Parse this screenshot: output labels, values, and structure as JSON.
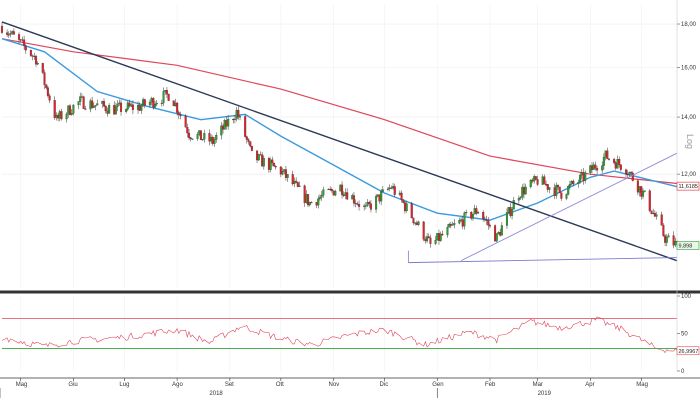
{
  "chart_data": [
    {
      "type": "candlestick",
      "scale": "log",
      "scale_label": "Log",
      "ylim": [
        8.8,
        19.0
      ],
      "y_ticks": [
        "18,00",
        "16,00",
        "14,00",
        "12,00"
      ],
      "last_value": "9,898",
      "ma_short_value": "11,6185",
      "x_months": [
        "Mag",
        "Giu",
        "Lug",
        "Ago",
        "Set",
        "Ott",
        "Nov",
        "Dic",
        "Gen",
        "Feb",
        "Mar",
        "Apr",
        "Mag"
      ],
      "x_years": [
        "2018",
        "2019"
      ],
      "colors": {
        "up": "#2e9e2e",
        "down": "#e0202a",
        "ma_long": "#e0455a",
        "ma_short": "#3c9ae0",
        "trendline": "#2b3a55",
        "support": "#7b7bd0",
        "channel": "#8a8ad8"
      },
      "price_anchors": [
        {
          "date": "2018-04-20",
          "close": 17.9
        },
        {
          "date": "2018-05-10",
          "close": 16.4
        },
        {
          "date": "2018-05-22",
          "close": 13.9
        },
        {
          "date": "2018-06-05",
          "close": 14.6
        },
        {
          "date": "2018-06-25",
          "close": 14.3
        },
        {
          "date": "2018-07-10",
          "close": 14.4
        },
        {
          "date": "2018-07-28",
          "close": 14.9
        },
        {
          "date": "2018-08-08",
          "close": 13.4
        },
        {
          "date": "2018-08-22",
          "close": 13.1
        },
        {
          "date": "2018-09-05",
          "close": 14.2
        },
        {
          "date": "2018-09-14",
          "close": 12.6
        },
        {
          "date": "2018-10-01",
          "close": 12.1
        },
        {
          "date": "2018-10-18",
          "close": 11.1
        },
        {
          "date": "2018-11-05",
          "close": 11.6
        },
        {
          "date": "2018-11-20",
          "close": 10.9
        },
        {
          "date": "2018-12-05",
          "close": 11.6
        },
        {
          "date": "2018-12-20",
          "close": 10.5
        },
        {
          "date": "2018-12-28",
          "close": 9.9
        },
        {
          "date": "2019-01-10",
          "close": 10.4
        },
        {
          "date": "2019-01-25",
          "close": 10.9
        },
        {
          "date": "2019-02-05",
          "close": 10.1
        },
        {
          "date": "2019-02-18",
          "close": 11.4
        },
        {
          "date": "2019-03-01",
          "close": 11.8
        },
        {
          "date": "2019-03-15",
          "close": 11.4
        },
        {
          "date": "2019-03-28",
          "close": 11.9
        },
        {
          "date": "2019-04-10",
          "close": 12.6
        },
        {
          "date": "2019-04-22",
          "close": 12.2
        },
        {
          "date": "2019-05-03",
          "close": 11.3
        },
        {
          "date": "2019-05-15",
          "close": 10.1
        },
        {
          "date": "2019-05-22",
          "close": 9.9
        }
      ],
      "ma_long": [
        {
          "date": "2018-04-20",
          "value": 17.3
        },
        {
          "date": "2018-06-01",
          "value": 16.7
        },
        {
          "date": "2018-08-01",
          "value": 16.1
        },
        {
          "date": "2018-10-01",
          "value": 15.1
        },
        {
          "date": "2018-12-01",
          "value": 13.9
        },
        {
          "date": "2019-02-01",
          "value": 12.6
        },
        {
          "date": "2019-04-01",
          "value": 12.0
        },
        {
          "date": "2019-05-22",
          "value": 11.7
        }
      ],
      "ma_short": [
        {
          "date": "2018-04-20",
          "value": 17.3
        },
        {
          "date": "2018-05-15",
          "value": 16.7
        },
        {
          "date": "2018-06-15",
          "value": 15.0
        },
        {
          "date": "2018-07-15",
          "value": 14.4
        },
        {
          "date": "2018-08-15",
          "value": 13.9
        },
        {
          "date": "2018-09-10",
          "value": 14.1
        },
        {
          "date": "2018-10-01",
          "value": 13.3
        },
        {
          "date": "2018-11-01",
          "value": 12.3
        },
        {
          "date": "2018-12-01",
          "value": 11.4
        },
        {
          "date": "2019-01-01",
          "value": 10.8
        },
        {
          "date": "2019-02-01",
          "value": 10.6
        },
        {
          "date": "2019-03-01",
          "value": 11.1
        },
        {
          "date": "2019-04-01",
          "value": 11.9
        },
        {
          "date": "2019-04-15",
          "value": 12.1
        },
        {
          "date": "2019-05-22",
          "value": 11.6
        }
      ],
      "trendlines": [
        {
          "name": "downtrend",
          "from": {
            "date": "2018-04-20",
            "value": 18.1
          },
          "to": {
            "date": "2019-05-22",
            "value": 9.5
          }
        },
        {
          "name": "support",
          "from": {
            "date": "2018-12-15",
            "value": 9.45
          },
          "to": {
            "date": "2019-05-22",
            "value": 9.58
          }
        },
        {
          "name": "channel",
          "from": {
            "date": "2019-01-15",
            "value": 9.5
          },
          "to": {
            "date": "2019-05-22",
            "value": 12.7
          }
        }
      ]
    },
    {
      "type": "line",
      "indicator": "RSI",
      "ylim": [
        0,
        100
      ],
      "y_ticks": [
        "100",
        "50",
        "0"
      ],
      "last_value": "26,9967",
      "upper_level": 70,
      "lower_level": 30,
      "colors": {
        "rsi": "#e0455a",
        "upper": "#e0455a",
        "lower": "#4caf50"
      },
      "rsi_anchors": [
        {
          "date": "2018-04-20",
          "value": 45
        },
        {
          "date": "2018-05-15",
          "value": 33
        },
        {
          "date": "2018-06-01",
          "value": 40
        },
        {
          "date": "2018-07-01",
          "value": 45
        },
        {
          "date": "2018-08-01",
          "value": 55
        },
        {
          "date": "2018-08-20",
          "value": 38
        },
        {
          "date": "2018-09-08",
          "value": 60
        },
        {
          "date": "2018-10-01",
          "value": 43
        },
        {
          "date": "2018-10-20",
          "value": 35
        },
        {
          "date": "2018-11-10",
          "value": 48
        },
        {
          "date": "2018-12-01",
          "value": 55
        },
        {
          "date": "2018-12-25",
          "value": 35
        },
        {
          "date": "2019-01-20",
          "value": 52
        },
        {
          "date": "2019-02-05",
          "value": 42
        },
        {
          "date": "2019-02-25",
          "value": 66
        },
        {
          "date": "2019-03-15",
          "value": 58
        },
        {
          "date": "2019-04-05",
          "value": 68
        },
        {
          "date": "2019-04-20",
          "value": 55
        },
        {
          "date": "2019-05-10",
          "value": 30
        },
        {
          "date": "2019-05-22",
          "value": 27
        }
      ]
    }
  ]
}
